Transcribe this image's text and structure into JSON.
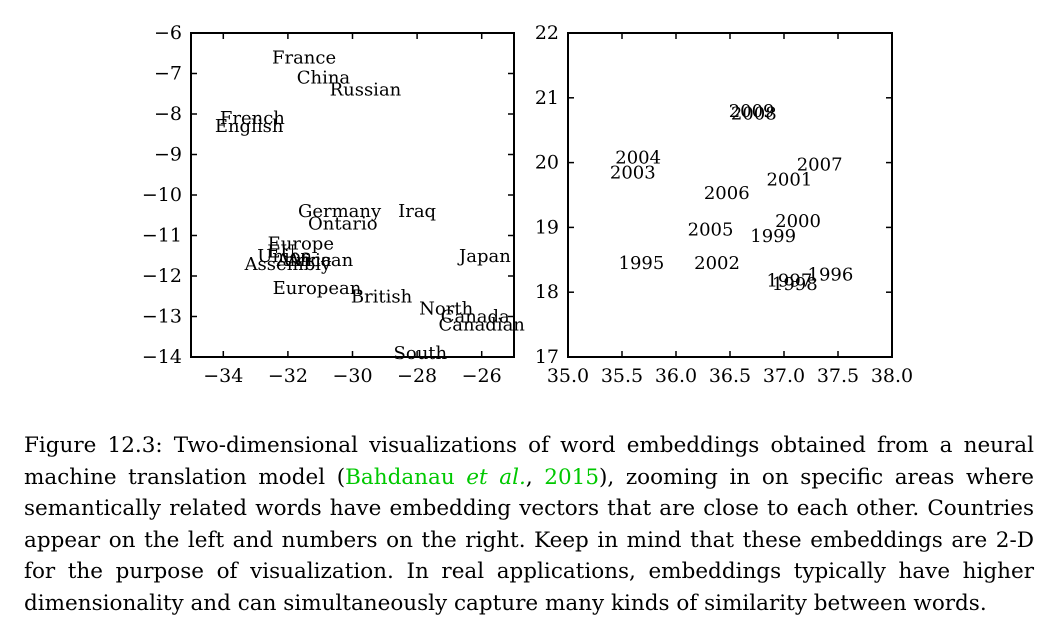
{
  "chart_data": [
    {
      "type": "scatter",
      "xlim": [
        -35,
        -25
      ],
      "ylim": [
        -14,
        -6
      ],
      "xticks": [
        -34,
        -32,
        -30,
        -28,
        -26
      ],
      "yticks": [
        -14,
        -13,
        -12,
        -11,
        -10,
        -9,
        -8,
        -7,
        -6
      ],
      "xtick_labels": [
        "−34",
        "−32",
        "−30",
        "−28",
        "−26"
      ],
      "ytick_labels": [
        "−14",
        "−13",
        "−12",
        "−11",
        "−10",
        "−9",
        "−8",
        "−7",
        "−6"
      ],
      "points": [
        {
          "label": "France",
          "x": -31.5,
          "y": -6.6
        },
        {
          "label": "China",
          "x": -30.9,
          "y": -7.1
        },
        {
          "label": "Russian",
          "x": -29.6,
          "y": -7.4
        },
        {
          "label": "French",
          "x": -33.1,
          "y": -8.1
        },
        {
          "label": "English",
          "x": -33.2,
          "y": -8.3
        },
        {
          "label": "Germany",
          "x": -30.4,
          "y": -10.4
        },
        {
          "label": "Iraq",
          "x": -28.0,
          "y": -10.4
        },
        {
          "label": "Ontario",
          "x": -30.3,
          "y": -10.7
        },
        {
          "label": "Europe",
          "x": -31.6,
          "y": -11.2
        },
        {
          "label": "EU",
          "x": -32.2,
          "y": -11.4
        },
        {
          "label": "Union",
          "x": -32.1,
          "y": -11.5
        },
        {
          "label": "African",
          "x": -31.0,
          "y": -11.6
        },
        {
          "label": "Africa",
          "x": -31.5,
          "y": -11.6
        },
        {
          "label": "Assembly",
          "x": -32.0,
          "y": -11.7
        },
        {
          "label": "Japan",
          "x": -25.9,
          "y": -11.5
        },
        {
          "label": "European",
          "x": -31.1,
          "y": -12.3
        },
        {
          "label": "British",
          "x": -29.1,
          "y": -12.5
        },
        {
          "label": "North",
          "x": -27.1,
          "y": -12.8
        },
        {
          "label": "Canada",
          "x": -26.2,
          "y": -13.0
        },
        {
          "label": "Canadian",
          "x": -26.0,
          "y": -13.2
        },
        {
          "label": "South",
          "x": -27.9,
          "y": -13.9
        }
      ]
    },
    {
      "type": "scatter",
      "xlim": [
        35.0,
        38.0
      ],
      "ylim": [
        17,
        22
      ],
      "xticks": [
        35.0,
        35.5,
        36.0,
        36.5,
        37.0,
        37.5,
        38.0
      ],
      "yticks": [
        17,
        18,
        19,
        20,
        21,
        22
      ],
      "xtick_labels": [
        "35.0",
        "35.5",
        "36.0",
        "36.5",
        "37.0",
        "37.5",
        "38.0"
      ],
      "ytick_labels": [
        "17",
        "18",
        "19",
        "20",
        "21",
        "22"
      ],
      "points": [
        {
          "label": "2009",
          "x": 36.7,
          "y": 20.8
        },
        {
          "label": "2008",
          "x": 36.72,
          "y": 20.76
        },
        {
          "label": "2004",
          "x": 35.65,
          "y": 20.08
        },
        {
          "label": "2003",
          "x": 35.6,
          "y": 19.85
        },
        {
          "label": "2007",
          "x": 37.33,
          "y": 19.97
        },
        {
          "label": "2001",
          "x": 37.05,
          "y": 19.74
        },
        {
          "label": "2006",
          "x": 36.47,
          "y": 19.53
        },
        {
          "label": "2000",
          "x": 37.13,
          "y": 19.1
        },
        {
          "label": "2005",
          "x": 36.32,
          "y": 18.97
        },
        {
          "label": "1999",
          "x": 36.9,
          "y": 18.87
        },
        {
          "label": "1995",
          "x": 35.68,
          "y": 18.45
        },
        {
          "label": "2002",
          "x": 36.38,
          "y": 18.45
        },
        {
          "label": "1996",
          "x": 37.43,
          "y": 18.27
        },
        {
          "label": "1997",
          "x": 37.05,
          "y": 18.18
        },
        {
          "label": "1998",
          "x": 37.1,
          "y": 18.13
        }
      ]
    }
  ],
  "caption": {
    "prefix": "Figure 12.3: Two-dimensional visualizations of word embeddings obtained from a neural machine translation model (",
    "cite_author": "Bahdanau ",
    "cite_etal": "et al.",
    "cite_sep": ", ",
    "cite_year": "2015",
    "suffix": "), zooming in on specific areas where semantically related words have embedding vectors that are close to each other. Countries appear on the left and numbers on the right. Keep in mind that these embeddings are 2-D for the purpose of visualization. In real applications, embeddings typically have higher dimensionality and can simultaneously capture many kinds of similarity between words."
  }
}
